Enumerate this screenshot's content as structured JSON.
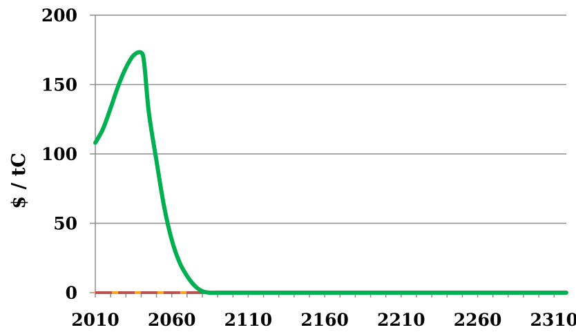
{
  "chart_data": {
    "type": "line",
    "title": "",
    "xlabel": "",
    "ylabel": "$ / tC",
    "xlim": [
      2010,
      2318
    ],
    "ylim": [
      0,
      200
    ],
    "x_ticks": [
      2010,
      2060,
      2110,
      2160,
      2210,
      2260,
      2310
    ],
    "y_ticks": [
      0,
      50,
      100,
      150,
      200
    ],
    "grid": "horizontal",
    "legend": "none",
    "series": [
      {
        "color": "#00b050",
        "style": "solid",
        "x": [
          2010,
          2015,
          2020,
          2025,
          2030,
          2035,
          2040,
          2042,
          2045,
          2050,
          2055,
          2060,
          2065,
          2070,
          2075,
          2080,
          2085,
          2090,
          2100,
          2150,
          2200,
          2250,
          2300,
          2318
        ],
        "y": [
          108,
          118,
          133,
          149,
          162,
          171,
          173,
          165,
          130,
          95,
          62,
          38,
          22,
          12,
          5,
          1,
          0,
          0,
          0,
          0,
          0,
          0,
          0,
          0
        ]
      },
      {
        "color": "#f5a623",
        "style": "solid",
        "x": [
          2010,
          2318
        ],
        "y": [
          0,
          0
        ]
      },
      {
        "color": "#c0504d",
        "style": "dashed",
        "x": [
          2010,
          2318
        ],
        "y": [
          0,
          0
        ]
      }
    ]
  }
}
